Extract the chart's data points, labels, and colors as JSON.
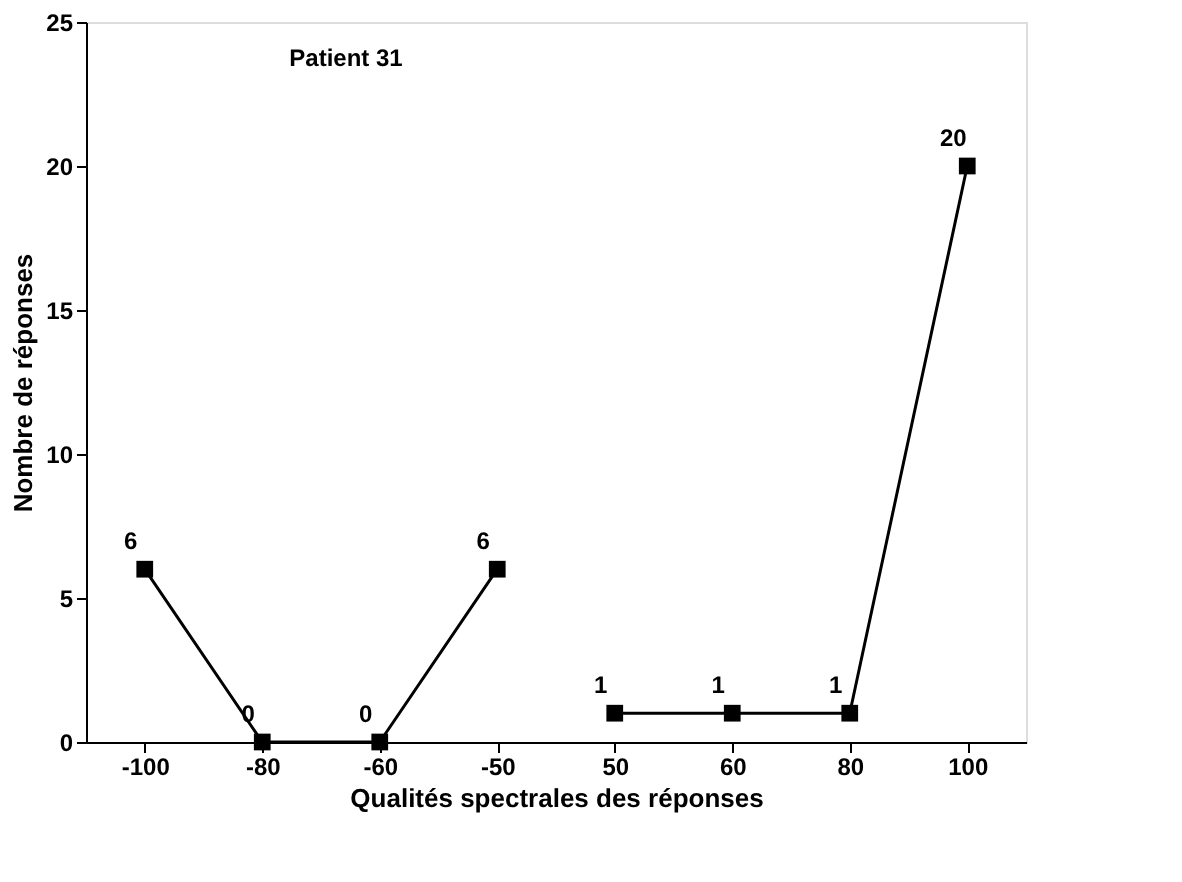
{
  "chart_data": {
    "type": "line",
    "categories": [
      "-100",
      "-80",
      "-60",
      "-50",
      "50",
      "60",
      "80",
      "100"
    ],
    "series": [
      {
        "color": "#000000",
        "values": [
          6,
          0,
          0,
          6,
          null,
          null,
          null,
          null
        ]
      },
      {
        "color": "#000000",
        "values": [
          null,
          null,
          null,
          null,
          1,
          1,
          1,
          20
        ]
      }
    ],
    "xlabel": "Qualités spectrales des réponses",
    "ylabel": "Nombre de réponses",
    "annotations": [
      "Patient 31"
    ],
    "ylim": [
      0,
      25
    ],
    "yticks": [
      0,
      5,
      10,
      15,
      20,
      25
    ],
    "grid": false,
    "legend": false,
    "marker": "square",
    "line_style": "solid",
    "data_labels": true
  }
}
